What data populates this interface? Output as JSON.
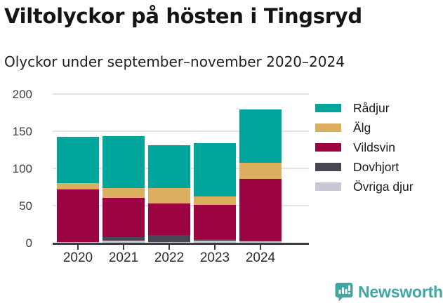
{
  "header": {
    "title": "Viltolyckor på hösten i Tingsryd",
    "subtitle": "Olyckor under september–november 2020–2024"
  },
  "chart_data": {
    "type": "bar",
    "stacked": true,
    "title": "Viltolyckor på hösten i Tingsryd",
    "subtitle": "Olyckor under september–november 2020–2024",
    "categories": [
      "2020",
      "2021",
      "2022",
      "2023",
      "2024"
    ],
    "series": [
      {
        "name": "Rådjur",
        "color": "#00A69B",
        "values": [
          62,
          70,
          58,
          72,
          72
        ]
      },
      {
        "name": "Älg",
        "color": "#DCAF5E",
        "values": [
          8,
          13,
          20,
          11,
          21
        ]
      },
      {
        "name": "Vildsvin",
        "color": "#9B0341",
        "values": [
          71,
          52,
          43,
          46,
          83
        ]
      },
      {
        "name": "Dovhjort",
        "color": "#474754",
        "values": [
          0,
          5,
          9,
          2,
          1
        ]
      },
      {
        "name": "Övriga djur",
        "color": "#C7C8D4",
        "values": [
          1,
          3,
          1,
          3,
          2
        ]
      }
    ],
    "stack_order_bottom_to_top": [
      "Övriga djur",
      "Dovhjort",
      "Vildsvin",
      "Älg",
      "Rådjur"
    ],
    "totals": [
      142,
      143,
      131,
      134,
      179
    ],
    "xlabel": "",
    "ylabel": "",
    "ylim": [
      0,
      200
    ],
    "yticks": [
      0,
      50,
      100,
      150,
      200
    ],
    "grid": true,
    "legend_position": "right"
  },
  "footer": {
    "brand": "Newsworthy",
    "brand_color": "#3FA8A3",
    "logo_icon": "bar-chart-speech-bubble"
  }
}
